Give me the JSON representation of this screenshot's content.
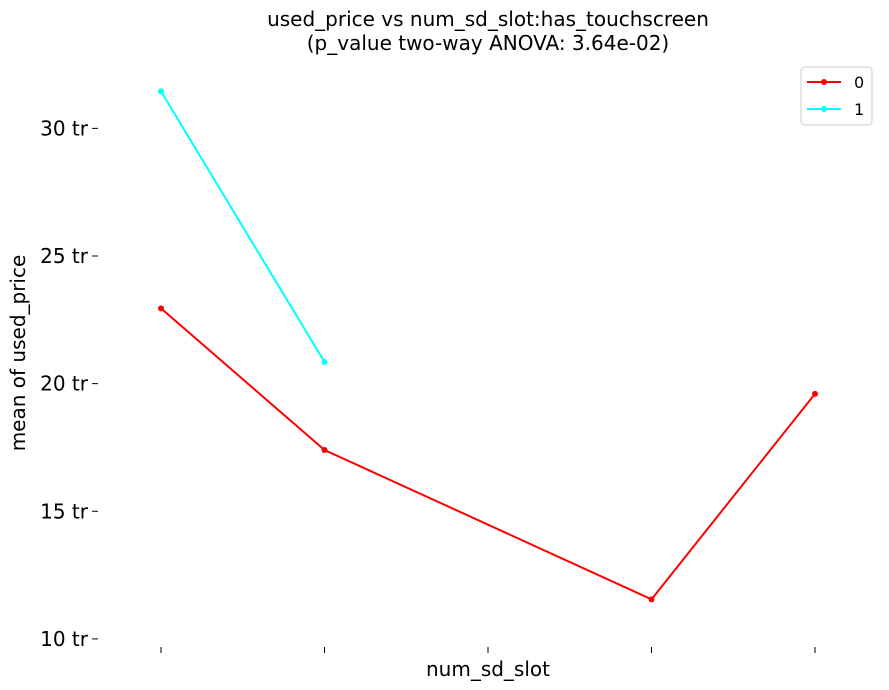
{
  "chart_data": {
    "type": "line",
    "title": "used_price vs num_sd_slot:has_touchscreen",
    "subtitle": "(p_value two-way ANOVA: 3.64e-02)",
    "xlabel": "num_sd_slot",
    "ylabel": "mean of used_price",
    "categories": [
      "",
      "",
      "",
      "",
      ""
    ],
    "y_ticks": [
      10,
      15,
      20,
      25,
      30
    ],
    "y_tick_labels": [
      "10 tr",
      "15 tr",
      "20 tr",
      "25 tr",
      "30 tr"
    ],
    "ylim": [
      9.8,
      32.6
    ],
    "grid": false,
    "legend_position": "top-right",
    "series": [
      {
        "name": "0",
        "color": "#ff0000",
        "points": [
          [
            0,
            22.95
          ],
          [
            1,
            17.4
          ],
          [
            3,
            11.55
          ],
          [
            4,
            19.6
          ]
        ]
      },
      {
        "name": "1",
        "color": "#00ffff",
        "points": [
          [
            0,
            31.45
          ],
          [
            1,
            20.85
          ]
        ]
      }
    ]
  }
}
